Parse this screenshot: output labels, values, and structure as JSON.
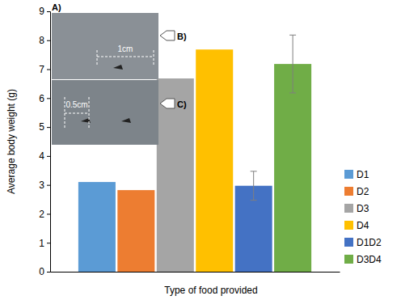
{
  "chart_data": {
    "type": "bar",
    "y_label": "Average body weight (g)",
    "x_label": "Type of food provided",
    "categories": [
      "D1",
      "D2",
      "D3",
      "D4",
      "D1D2",
      "D3D4"
    ],
    "values": [
      3.1,
      2.82,
      6.68,
      7.68,
      2.97,
      7.18
    ],
    "errors": [
      null,
      null,
      null,
      null,
      0.5,
      1.0
    ],
    "colors": [
      "#5b9bd5",
      "#ed7d31",
      "#a5a5a5",
      "#ffc000",
      "#4472c4",
      "#70ad47"
    ],
    "ylim": [
      0,
      9
    ],
    "yticks": [
      0,
      1,
      2,
      3,
      4,
      5,
      6,
      7,
      8,
      9
    ],
    "grid": false,
    "legend": "right",
    "tick_labels": "y",
    "annotations": [
      "A)",
      "B)",
      "C)",
      "1cm",
      "0.5cm"
    ]
  }
}
